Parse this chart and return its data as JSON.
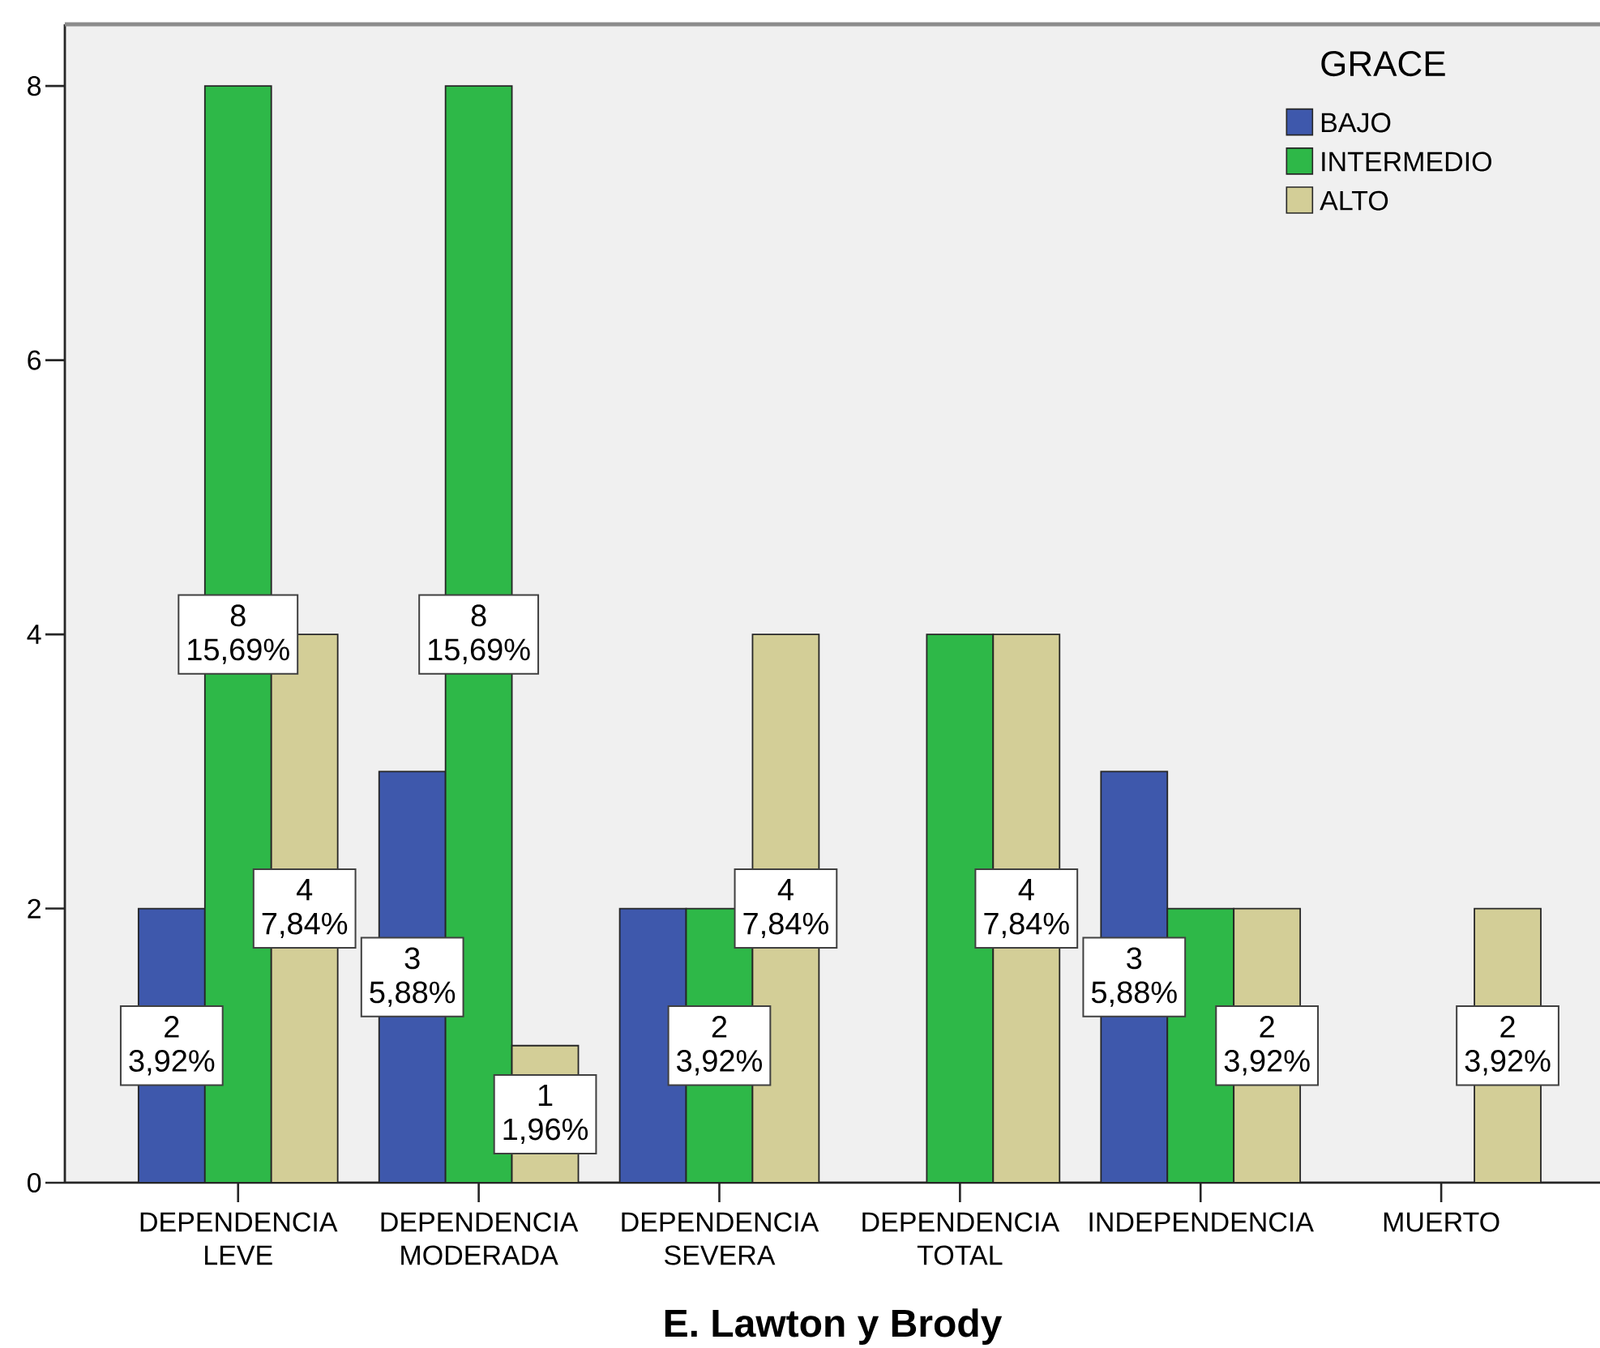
{
  "chart_data": {
    "type": "bar",
    "xlabel": "E. Lawton y Brody",
    "legend_title": "GRACE",
    "legend": "top right",
    "categories": [
      "DEPENDENCIA LEVE",
      "DEPENDENCIA MODERADA",
      "DEPENDENCIA SEVERA",
      "DEPENDENCIA TOTAL",
      "INDEPENDENCIA",
      "MUERTO"
    ],
    "series": [
      {
        "name": "BAJO",
        "color": "#3e58ac",
        "values": [
          2,
          3,
          2,
          null,
          3,
          null
        ],
        "value_labels": [
          "2 3,92%",
          "3 5,88%",
          null,
          null,
          "3 5,88%",
          null
        ]
      },
      {
        "name": "INTERMEDIO",
        "color": "#2eb848",
        "values": [
          8,
          8,
          2,
          4,
          2,
          null
        ],
        "value_labels": [
          "8 15,69%",
          "8 15,69%",
          "2 3,92%",
          null,
          null,
          null
        ]
      },
      {
        "name": "ALTO",
        "color": "#d3ce97",
        "values": [
          4,
          1,
          4,
          4,
          2,
          2
        ],
        "value_labels": [
          "4 7,84%",
          "1 1,96%",
          "4 7,84%",
          "4 7,84%",
          "2 3,92%",
          "2 3,92%"
        ]
      }
    ],
    "ylim": [
      0,
      8.45
    ],
    "yticks": [
      0,
      2,
      4,
      6,
      8
    ]
  }
}
